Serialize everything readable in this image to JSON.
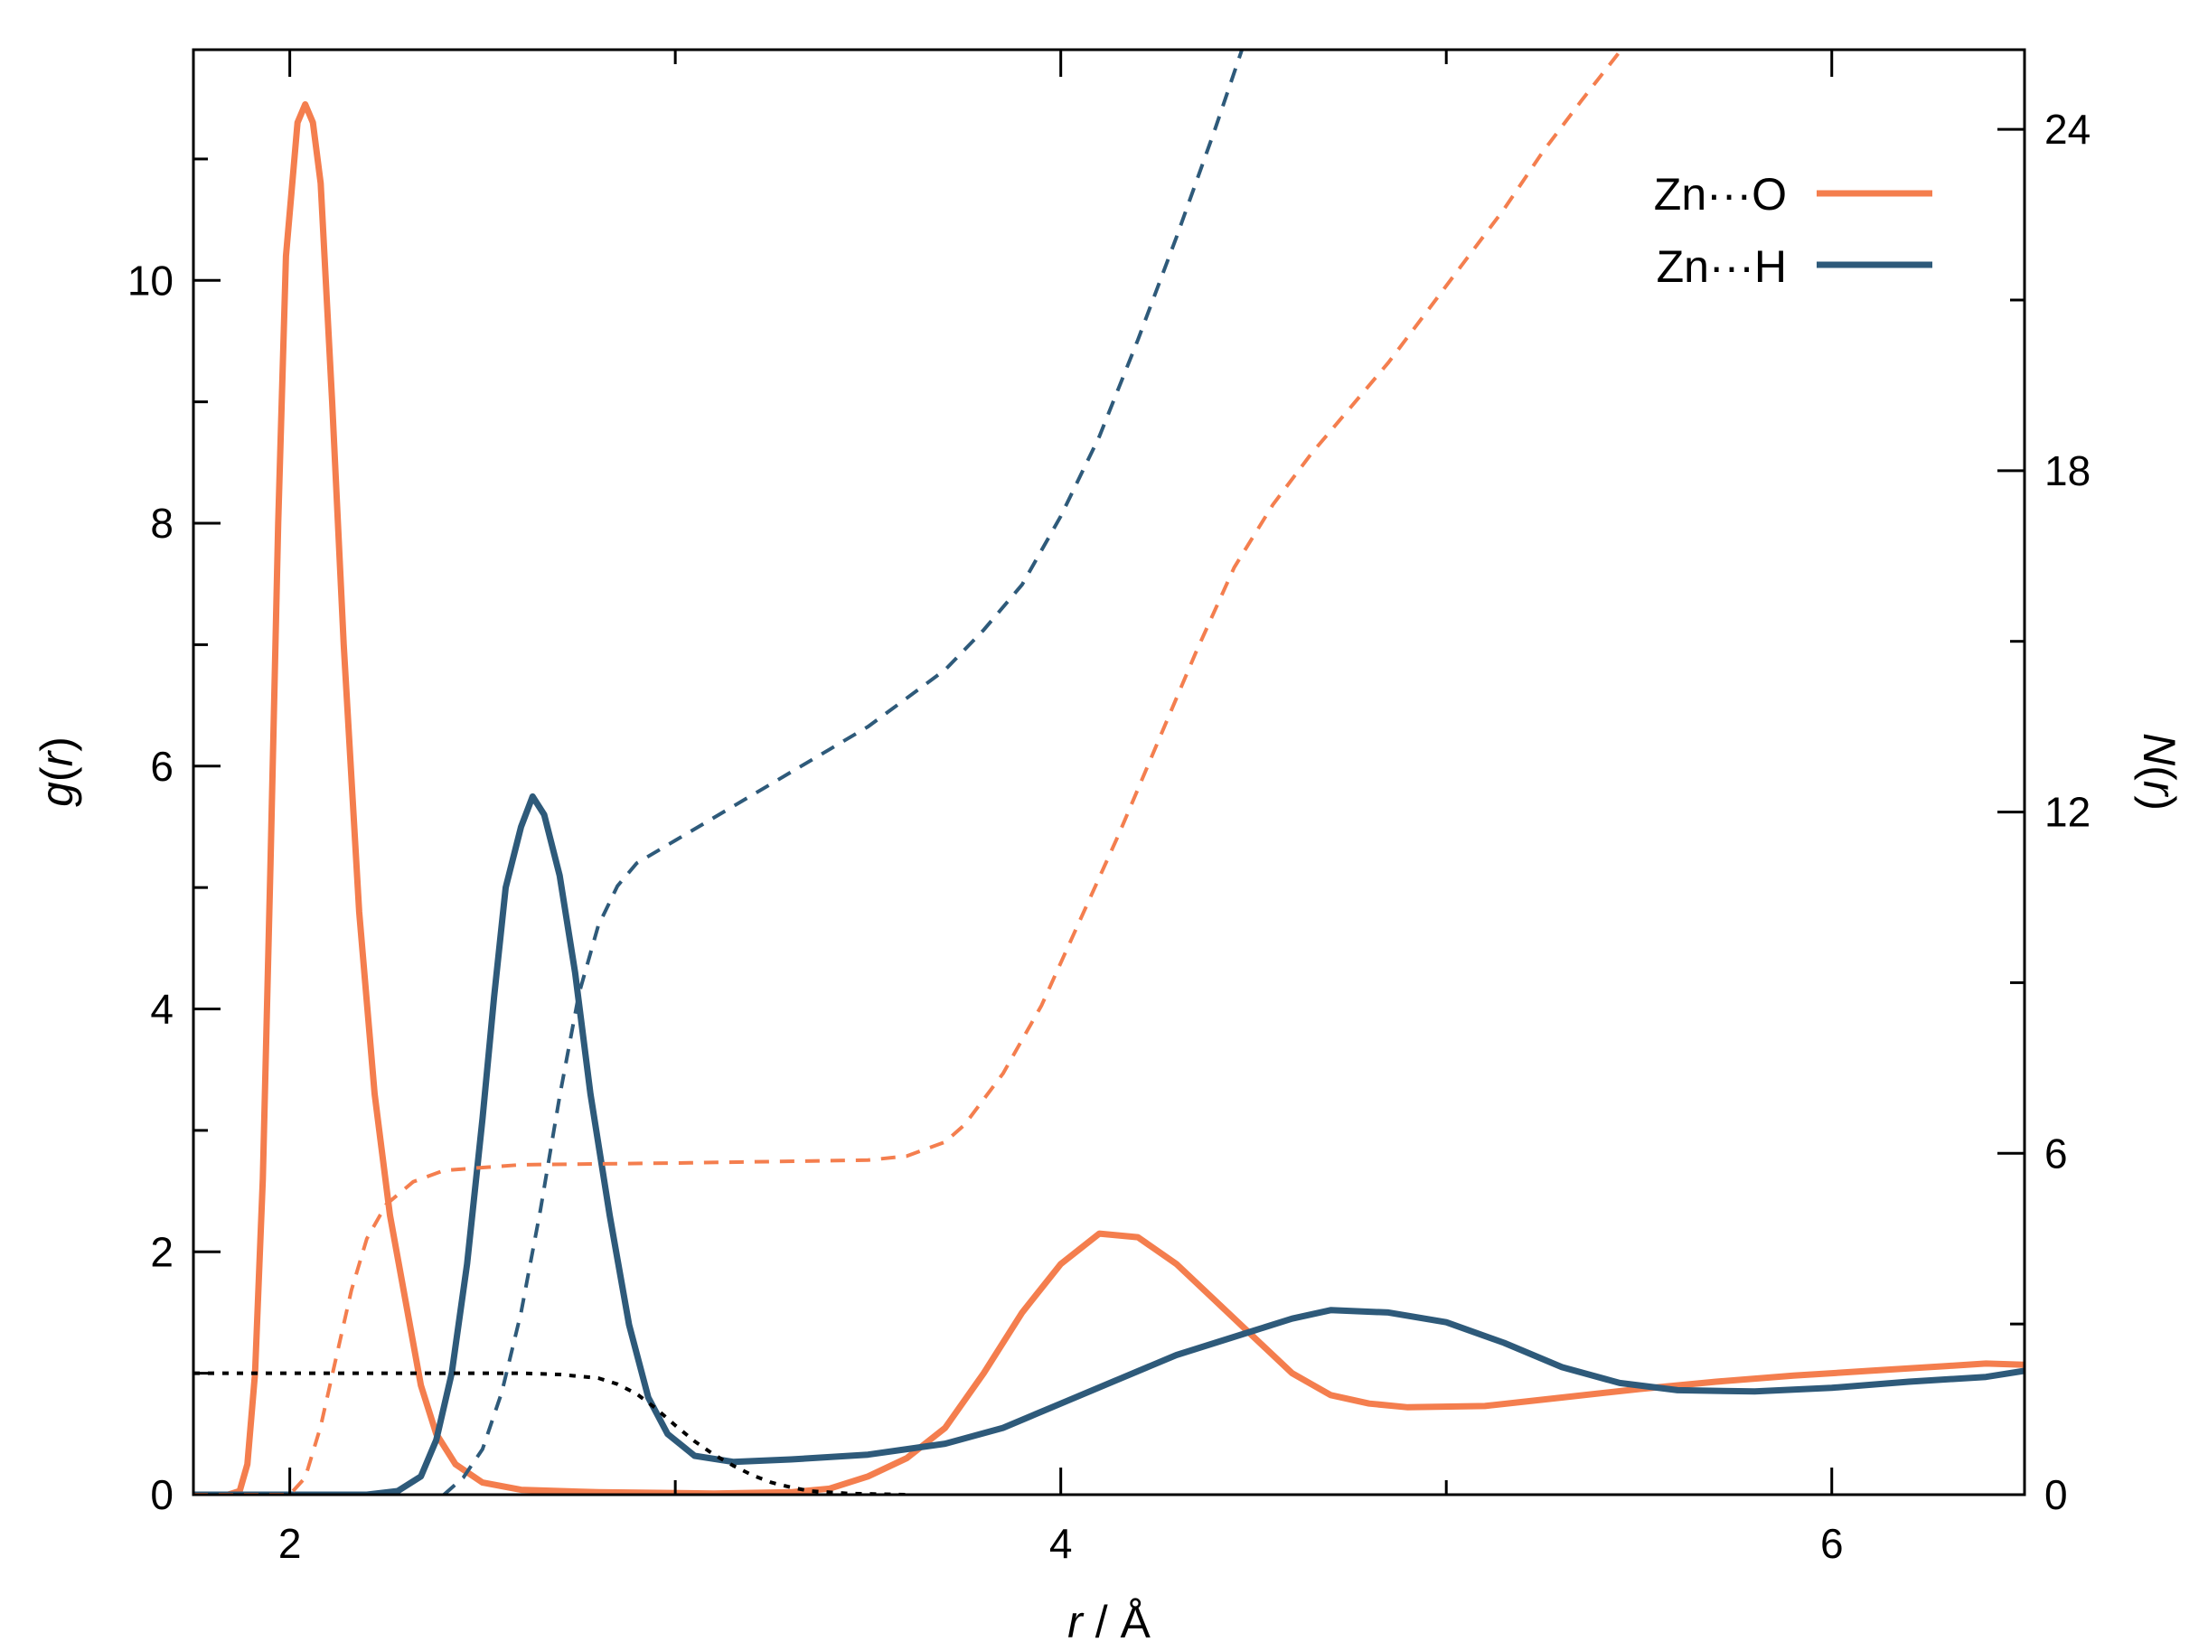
{
  "chart_data": {
    "type": "line",
    "xlabel_var": "r",
    "xlabel_unit": " / Å",
    "ylabel_left_var": "g",
    "ylabel_left_arg": "r",
    "ylabel_right_var": "N",
    "ylabel_right_arg": "r",
    "xlim": [
      1.75,
      6.5
    ],
    "ylim_left": [
      0,
      11.9
    ],
    "ylim_right": [
      0,
      25.4
    ],
    "x_ticks": [
      2,
      4,
      6
    ],
    "x_minor_ticks": [
      3,
      5
    ],
    "y_left_ticks": [
      0,
      2,
      4,
      6,
      8,
      10
    ],
    "y_left_minor_ticks": [
      1,
      3,
      5,
      7,
      9,
      11
    ],
    "y_right_ticks": [
      0,
      6,
      12,
      18,
      24
    ],
    "y_right_minor_ticks": [
      3,
      9,
      15,
      21
    ],
    "legend_position": "top-right",
    "colors": {
      "zno": "#F47E4E",
      "znh": "#2E5A7A",
      "switch": "#000000"
    },
    "series": [
      {
        "name": "Zn···O",
        "axis": "left",
        "style": "solid",
        "color": "#F47E4E",
        "points": [
          [
            1.75,
            0
          ],
          [
            1.84,
            0
          ],
          [
            1.87,
            0.03
          ],
          [
            1.89,
            0.25
          ],
          [
            1.91,
            1
          ],
          [
            1.93,
            2.6
          ],
          [
            1.95,
            5.2
          ],
          [
            1.97,
            8.0
          ],
          [
            1.99,
            10.2
          ],
          [
            2.02,
            11.3
          ],
          [
            2.04,
            11.45
          ],
          [
            2.06,
            11.3
          ],
          [
            2.08,
            10.8
          ],
          [
            2.11,
            9.0
          ],
          [
            2.14,
            7.0
          ],
          [
            2.18,
            4.8
          ],
          [
            2.22,
            3.3
          ],
          [
            2.26,
            2.3
          ],
          [
            2.3,
            1.6
          ],
          [
            2.34,
            0.9
          ],
          [
            2.38,
            0.5
          ],
          [
            2.43,
            0.25
          ],
          [
            2.5,
            0.1
          ],
          [
            2.6,
            0.04
          ],
          [
            2.8,
            0.02
          ],
          [
            3.1,
            0.01
          ],
          [
            3.3,
            0.02
          ],
          [
            3.4,
            0.05
          ],
          [
            3.5,
            0.15
          ],
          [
            3.6,
            0.3
          ],
          [
            3.7,
            0.55
          ],
          [
            3.8,
            1.0
          ],
          [
            3.9,
            1.5
          ],
          [
            4.0,
            1.9
          ],
          [
            4.1,
            2.15
          ],
          [
            4.2,
            2.12
          ],
          [
            4.3,
            1.9
          ],
          [
            4.4,
            1.6
          ],
          [
            4.5,
            1.3
          ],
          [
            4.6,
            1.0
          ],
          [
            4.7,
            0.82
          ],
          [
            4.8,
            0.75
          ],
          [
            4.9,
            0.72
          ],
          [
            5.1,
            0.73
          ],
          [
            5.3,
            0.8
          ],
          [
            5.5,
            0.87
          ],
          [
            5.7,
            0.93
          ],
          [
            5.9,
            0.98
          ],
          [
            6.1,
            1.02
          ],
          [
            6.3,
            1.06
          ],
          [
            6.4,
            1.08
          ],
          [
            6.5,
            1.07
          ]
        ]
      },
      {
        "name": "Zn···H",
        "axis": "left",
        "style": "solid",
        "color": "#2E5A7A",
        "points": [
          [
            1.75,
            0
          ],
          [
            2.2,
            0
          ],
          [
            2.28,
            0.03
          ],
          [
            2.34,
            0.15
          ],
          [
            2.38,
            0.45
          ],
          [
            2.42,
            1.0
          ],
          [
            2.46,
            1.9
          ],
          [
            2.5,
            3.1
          ],
          [
            2.53,
            4.1
          ],
          [
            2.56,
            5.0
          ],
          [
            2.6,
            5.5
          ],
          [
            2.63,
            5.75
          ],
          [
            2.66,
            5.6
          ],
          [
            2.7,
            5.1
          ],
          [
            2.74,
            4.3
          ],
          [
            2.78,
            3.3
          ],
          [
            2.83,
            2.3
          ],
          [
            2.88,
            1.4
          ],
          [
            2.93,
            0.8
          ],
          [
            2.98,
            0.5
          ],
          [
            3.05,
            0.32
          ],
          [
            3.15,
            0.27
          ],
          [
            3.3,
            0.29
          ],
          [
            3.5,
            0.33
          ],
          [
            3.7,
            0.42
          ],
          [
            3.85,
            0.55
          ],
          [
            4.0,
            0.75
          ],
          [
            4.15,
            0.95
          ],
          [
            4.3,
            1.15
          ],
          [
            4.5,
            1.35
          ],
          [
            4.6,
            1.45
          ],
          [
            4.7,
            1.52
          ],
          [
            4.85,
            1.5
          ],
          [
            5.0,
            1.42
          ],
          [
            5.15,
            1.25
          ],
          [
            5.3,
            1.05
          ],
          [
            5.45,
            0.92
          ],
          [
            5.6,
            0.86
          ],
          [
            5.8,
            0.85
          ],
          [
            6.0,
            0.88
          ],
          [
            6.2,
            0.93
          ],
          [
            6.4,
            0.97
          ],
          [
            6.5,
            1.02
          ]
        ]
      },
      {
        "name": "",
        "axis": "right",
        "style": "dashed",
        "color": "#F47E4E",
        "points": [
          [
            1.75,
            0
          ],
          [
            2.0,
            0
          ],
          [
            2.04,
            0.3
          ],
          [
            2.08,
            1.2
          ],
          [
            2.12,
            2.4
          ],
          [
            2.16,
            3.6
          ],
          [
            2.2,
            4.5
          ],
          [
            2.25,
            5.1
          ],
          [
            2.32,
            5.5
          ],
          [
            2.4,
            5.7
          ],
          [
            2.6,
            5.8
          ],
          [
            3.0,
            5.83
          ],
          [
            3.5,
            5.88
          ],
          [
            3.6,
            5.95
          ],
          [
            3.7,
            6.2
          ],
          [
            3.75,
            6.5
          ],
          [
            3.85,
            7.4
          ],
          [
            3.95,
            8.6
          ],
          [
            4.05,
            10.1
          ],
          [
            4.15,
            11.6
          ],
          [
            4.25,
            13.2
          ],
          [
            4.35,
            14.8
          ],
          [
            4.45,
            16.3
          ],
          [
            4.55,
            17.4
          ],
          [
            4.65,
            18.3
          ],
          [
            4.75,
            19.1
          ],
          [
            4.85,
            19.9
          ],
          [
            4.95,
            20.8
          ],
          [
            5.05,
            21.7
          ],
          [
            5.15,
            22.6
          ],
          [
            5.25,
            23.6
          ],
          [
            5.35,
            24.5
          ],
          [
            5.5,
            25.8
          ]
        ]
      },
      {
        "name": "",
        "axis": "right",
        "style": "dashed",
        "color": "#2E5A7A",
        "points": [
          [
            2.4,
            0
          ],
          [
            2.45,
            0.3
          ],
          [
            2.5,
            0.8
          ],
          [
            2.55,
            1.8
          ],
          [
            2.6,
            3.2
          ],
          [
            2.65,
            5.0
          ],
          [
            2.7,
            7.0
          ],
          [
            2.75,
            8.8
          ],
          [
            2.8,
            10.0
          ],
          [
            2.85,
            10.7
          ],
          [
            2.9,
            11.1
          ],
          [
            3.0,
            11.5
          ],
          [
            3.1,
            11.9
          ],
          [
            3.2,
            12.3
          ],
          [
            3.3,
            12.7
          ],
          [
            3.4,
            13.1
          ],
          [
            3.5,
            13.5
          ],
          [
            3.6,
            14.0
          ],
          [
            3.7,
            14.5
          ],
          [
            3.8,
            15.2
          ],
          [
            3.9,
            16.0
          ],
          [
            4.0,
            17.2
          ],
          [
            4.1,
            18.6
          ],
          [
            4.2,
            20.3
          ],
          [
            4.3,
            22.1
          ],
          [
            4.4,
            24.0
          ],
          [
            4.48,
            25.6
          ]
        ]
      },
      {
        "name": "",
        "axis": "left",
        "style": "dotted",
        "color": "#000000",
        "points": [
          [
            1.75,
            1
          ],
          [
            2.6,
            1
          ],
          [
            2.7,
            0.99
          ],
          [
            2.8,
            0.96
          ],
          [
            2.85,
            0.91
          ],
          [
            2.9,
            0.83
          ],
          [
            2.95,
            0.71
          ],
          [
            3.0,
            0.57
          ],
          [
            3.05,
            0.44
          ],
          [
            3.1,
            0.33
          ],
          [
            3.15,
            0.24
          ],
          [
            3.2,
            0.16
          ],
          [
            3.25,
            0.1
          ],
          [
            3.3,
            0.06
          ],
          [
            3.35,
            0.03
          ],
          [
            3.45,
            0.01
          ],
          [
            3.6,
            0
          ]
        ]
      }
    ]
  }
}
